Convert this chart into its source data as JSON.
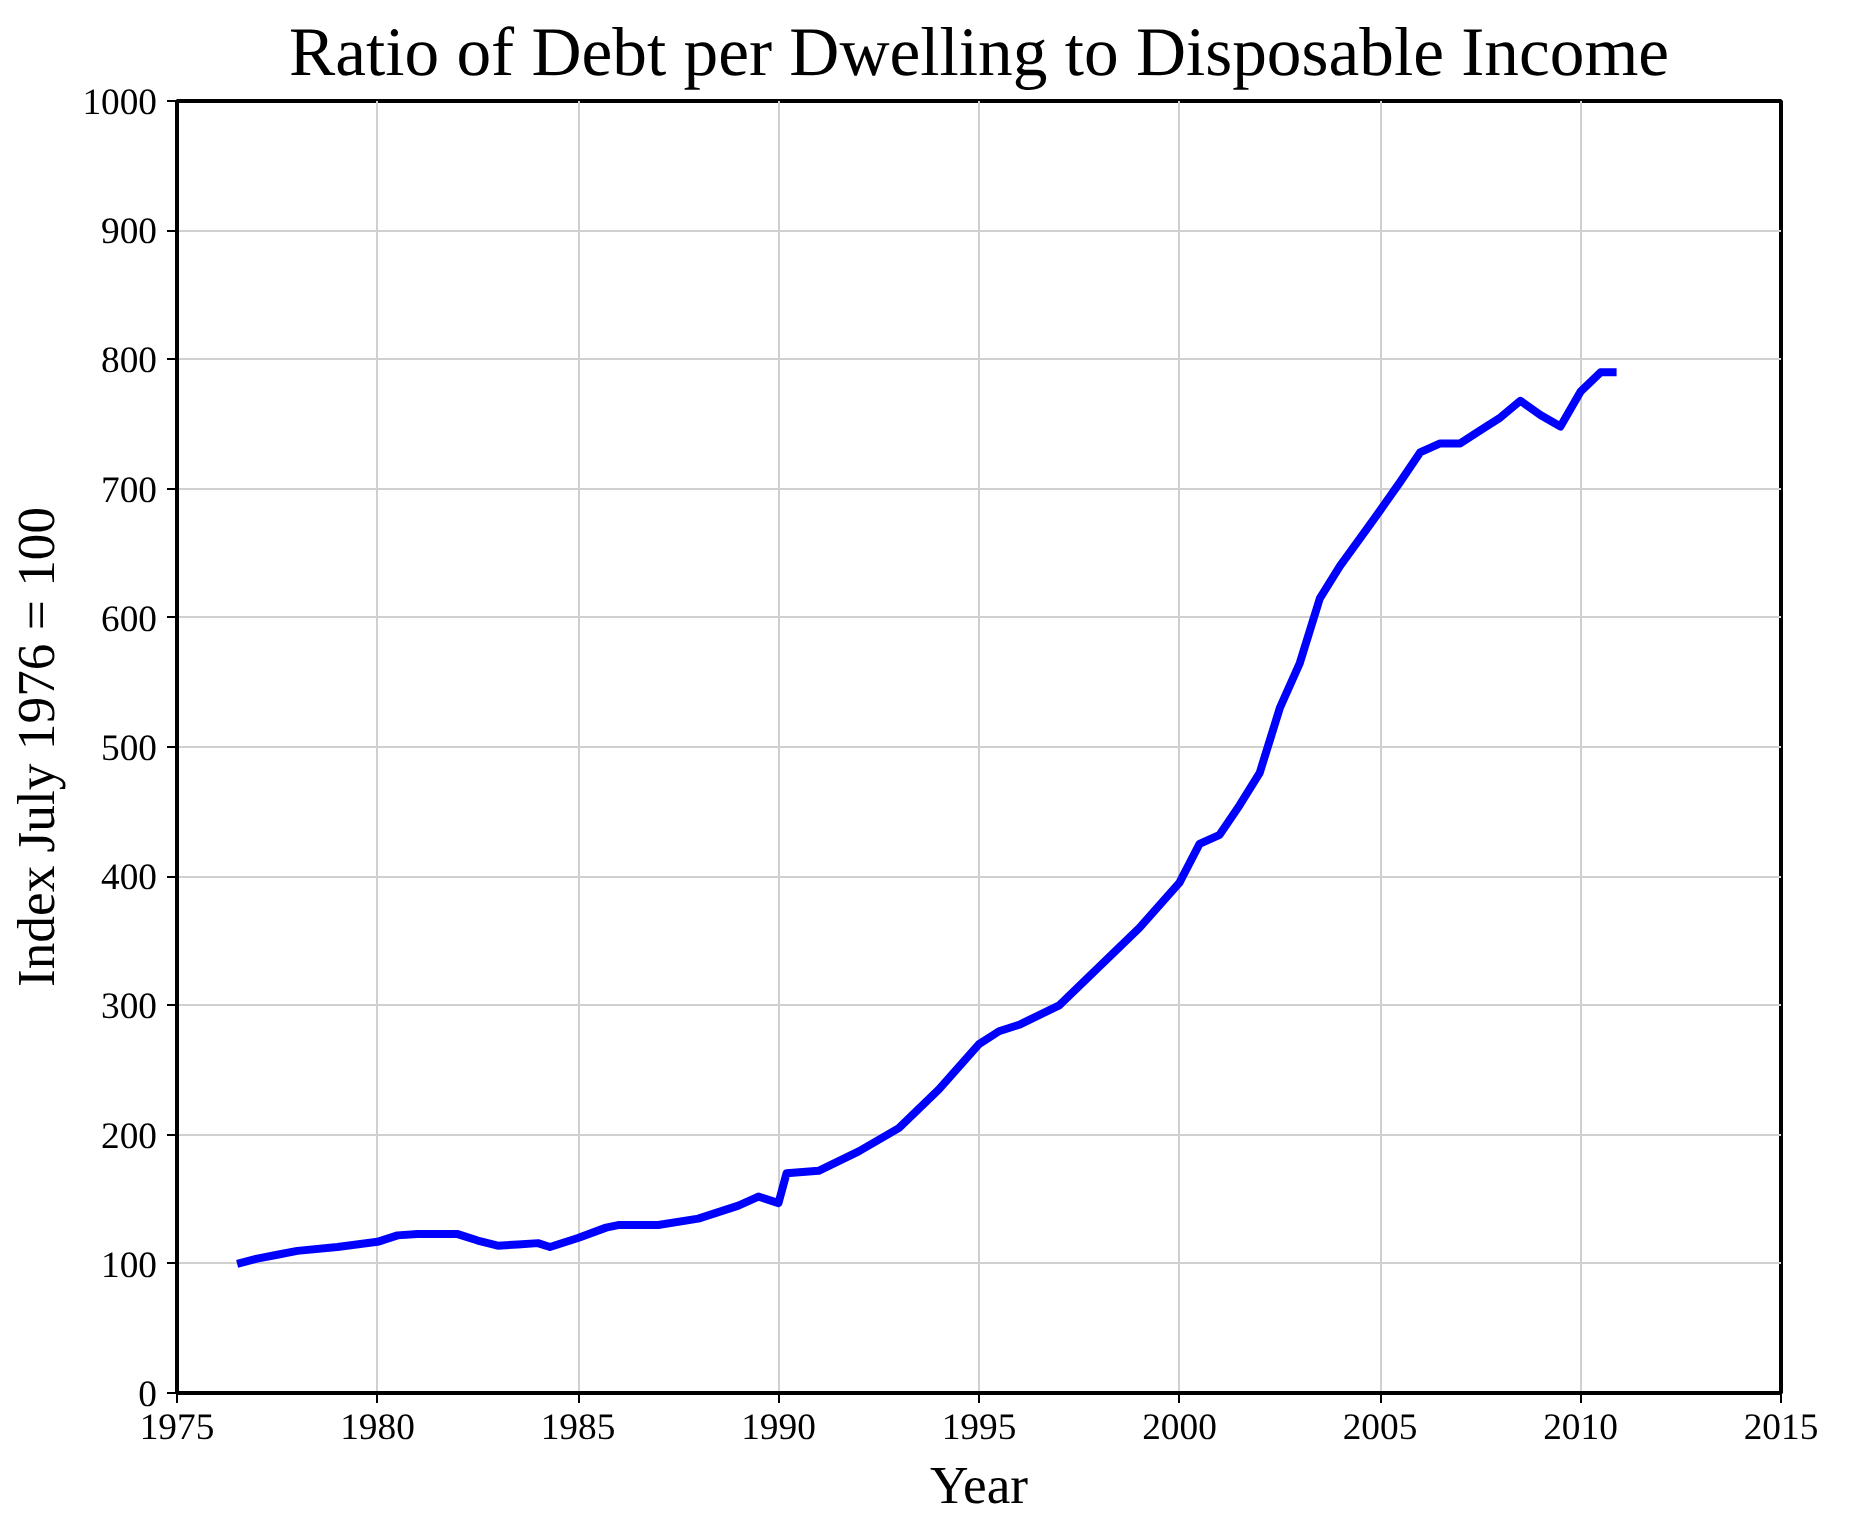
{
  "chart_data": {
    "type": "line",
    "title": "Ratio of Debt per Dwelling to Disposable Income",
    "xlabel": "Year",
    "ylabel": "Index July 1976 = 100",
    "x": [
      1976.5,
      1977,
      1977.5,
      1978,
      1979,
      1980,
      1980.5,
      1981,
      1982,
      1982.5,
      1983,
      1983.5,
      1984,
      1984.3,
      1985,
      1985.7,
      1986,
      1987,
      1988,
      1989,
      1989.5,
      1990,
      1990.2,
      1991,
      1992,
      1993,
      1994,
      1995,
      1995.5,
      1996,
      1997,
      1998,
      1999,
      2000,
      2000.5,
      2001,
      2001.5,
      2002,
      2002.5,
      2003,
      2003.5,
      2004,
      2004.7,
      2005,
      2005.5,
      2006,
      2006.5,
      2007,
      2007.5,
      2008,
      2008.5,
      2009,
      2009.5,
      2010,
      2010.5,
      2010.9
    ],
    "series": [
      {
        "color": "#0000ff",
        "values": [
          100,
          104,
          107,
          110,
          113,
          117,
          122,
          123,
          123,
          118,
          114,
          115,
          116,
          113,
          120,
          128,
          130,
          130,
          135,
          145,
          152,
          147,
          170,
          172,
          187,
          205,
          235,
          270,
          280,
          285,
          300,
          330,
          360,
          395,
          425,
          432,
          455,
          480,
          530,
          565,
          615,
          640,
          670,
          683,
          705,
          728,
          735,
          735,
          745,
          755,
          768,
          757,
          748,
          775,
          790,
          790
        ]
      }
    ],
    "xlim": [
      1975,
      2015
    ],
    "xticks": [
      1975,
      1980,
      1985,
      1990,
      1995,
      2000,
      2005,
      2010,
      2015
    ],
    "ylim": [
      0,
      1000
    ],
    "yticks": [
      0,
      100,
      200,
      300,
      400,
      500,
      600,
      700,
      800,
      900,
      1000
    ],
    "grid": true,
    "line_style": "solid",
    "marker": "none"
  }
}
